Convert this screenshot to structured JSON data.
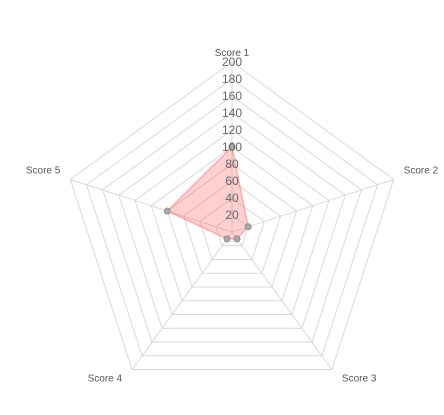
{
  "chart_data": {
    "type": "radar",
    "categories": [
      "Score 1",
      "Score 2",
      "Score 3",
      "Score 4",
      "Score 5"
    ],
    "series": [
      {
        "values": [
          100,
          20,
          10,
          10,
          80
        ],
        "color": "#ff6b6b"
      }
    ],
    "r_ticks": [
      20,
      40,
      60,
      80,
      100,
      120,
      140,
      160,
      180,
      200
    ],
    "rlim": [
      0,
      200
    ],
    "grid": true
  }
}
